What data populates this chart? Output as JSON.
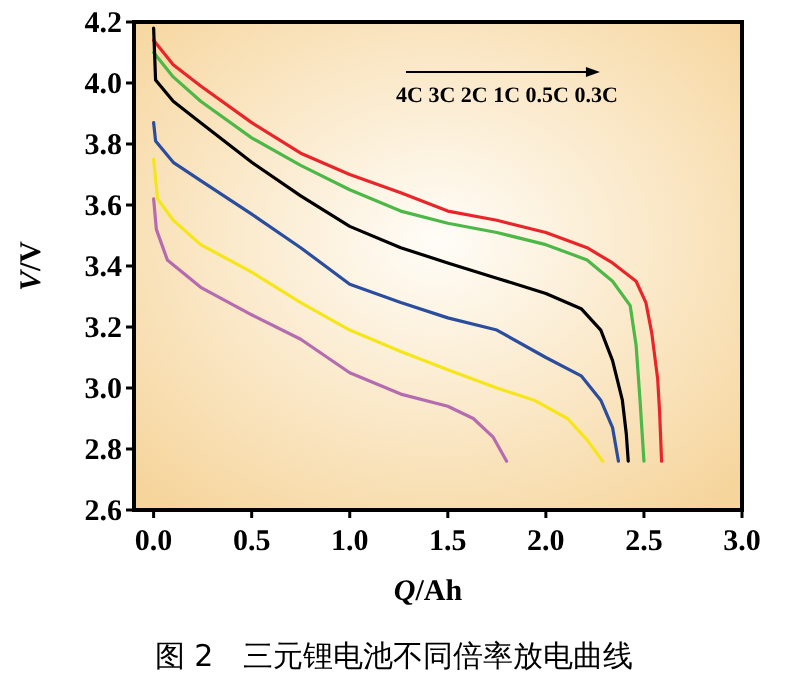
{
  "chart_data": {
    "type": "line",
    "title": "图 2　三元锂电池不同倍率放电曲线",
    "xlabel": "*Q*/Ah",
    "ylabel": "*V*/V",
    "annotations": [
      "4C 3C 2C 1C 0.5C 0.3C"
    ],
    "xlim": [
      -0.1,
      3.0
    ],
    "ylim": [
      2.6,
      4.2
    ],
    "xticks": [
      {
        "value": 0,
        "label": "0.0"
      },
      {
        "value": 0.5,
        "label": "0.5"
      },
      {
        "value": 1,
        "label": "1.0"
      },
      {
        "value": 1.5,
        "label": "1.5"
      },
      {
        "value": 2,
        "label": "2.0"
      },
      {
        "value": 2.5,
        "label": "2.5"
      },
      {
        "value": 3,
        "label": "3.0"
      }
    ],
    "yticks": [
      {
        "value": 2.6,
        "label": "2.6"
      },
      {
        "value": 2.8,
        "label": "2.8"
      },
      {
        "value": 3,
        "label": "3.0"
      },
      {
        "value": 3.2,
        "label": "3.2"
      },
      {
        "value": 3.4,
        "label": "3.4"
      },
      {
        "value": 3.6,
        "label": "3.6"
      },
      {
        "value": 3.8,
        "label": "3.8"
      },
      {
        "value": 4,
        "label": "4.0"
      },
      {
        "value": 4.2,
        "label": "4.2"
      }
    ],
    "series": [
      {
        "color": "#e8262a",
        "x": [
          0,
          0.1,
          0.24,
          0.5,
          0.75,
          1.0,
          1.26,
          1.5,
          1.75,
          2.0,
          2.21,
          2.34,
          2.46,
          2.51,
          2.54,
          2.57,
          2.58,
          2.59
        ],
        "values": [
          4.14,
          4.06,
          3.99,
          3.87,
          3.77,
          3.7,
          3.64,
          3.58,
          3.55,
          3.51,
          3.46,
          3.41,
          3.35,
          3.28,
          3.18,
          3.03,
          2.92,
          2.76
        ]
      },
      {
        "color": "#4cb847",
        "x": [
          0,
          0.1,
          0.24,
          0.5,
          0.75,
          1.0,
          1.26,
          1.5,
          1.75,
          2.0,
          2.21,
          2.34,
          2.43,
          2.46,
          2.48,
          2.5
        ],
        "values": [
          4.1,
          4.02,
          3.94,
          3.82,
          3.73,
          3.65,
          3.58,
          3.54,
          3.51,
          3.47,
          3.42,
          3.35,
          3.27,
          3.14,
          2.96,
          2.76
        ]
      },
      {
        "color": "#000000",
        "x": [
          0,
          0.01,
          0.1,
          0.24,
          0.5,
          0.75,
          1.0,
          1.26,
          1.5,
          1.75,
          2.0,
          2.18,
          2.28,
          2.34,
          2.39,
          2.41,
          2.42
        ],
        "values": [
          4.18,
          4.01,
          3.94,
          3.87,
          3.74,
          3.63,
          3.53,
          3.46,
          3.41,
          3.36,
          3.31,
          3.26,
          3.19,
          3.09,
          2.96,
          2.85,
          2.76
        ]
      },
      {
        "color": "#2b4d9e",
        "x": [
          0,
          0.01,
          0.1,
          0.24,
          0.5,
          0.75,
          1.0,
          1.26,
          1.5,
          1.75,
          2.0,
          2.18,
          2.28,
          2.34,
          2.37
        ],
        "values": [
          3.87,
          3.81,
          3.74,
          3.68,
          3.57,
          3.46,
          3.34,
          3.28,
          3.23,
          3.19,
          3.1,
          3.04,
          2.96,
          2.87,
          2.76
        ]
      },
      {
        "color": "#f5e61a",
        "x": [
          0,
          0.02,
          0.1,
          0.24,
          0.5,
          0.75,
          1.0,
          1.26,
          1.5,
          1.75,
          1.94,
          2.11,
          2.21,
          2.29
        ],
        "values": [
          3.75,
          3.62,
          3.55,
          3.47,
          3.38,
          3.28,
          3.19,
          3.12,
          3.06,
          3.0,
          2.96,
          2.9,
          2.83,
          2.76
        ]
      },
      {
        "color": "#b56bb0",
        "x": [
          0,
          0.014,
          0.07,
          0.24,
          0.5,
          0.75,
          1.0,
          1.26,
          1.5,
          1.63,
          1.73,
          1.8
        ],
        "values": [
          3.62,
          3.52,
          3.42,
          3.33,
          3.24,
          3.16,
          3.05,
          2.98,
          2.94,
          2.9,
          2.84,
          2.76
        ]
      }
    ]
  }
}
